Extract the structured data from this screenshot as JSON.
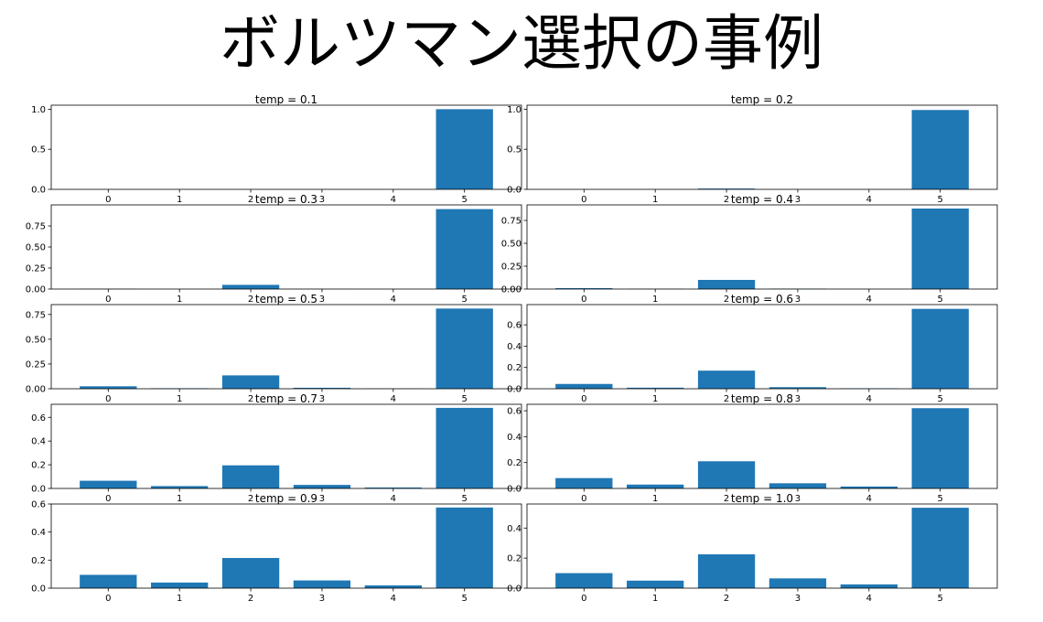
{
  "title": "ボルツマン選択の事例",
  "chart_data": [
    {
      "type": "bar",
      "title": "temp = 0.1",
      "categories": [
        "0",
        "1",
        "2",
        "3",
        "4",
        "5"
      ],
      "values": [
        0.0,
        0.0,
        0.0,
        0.0,
        0.0,
        1.0
      ],
      "ylim": [
        0,
        1.05
      ],
      "yticks": [
        0.0,
        0.5,
        1.0
      ],
      "yfmt": 1,
      "color": "#1f77b4"
    },
    {
      "type": "bar",
      "title": "temp = 0.2",
      "categories": [
        "0",
        "1",
        "2",
        "3",
        "4",
        "5"
      ],
      "values": [
        0.0,
        0.0,
        0.01,
        0.0,
        0.0,
        0.99
      ],
      "ylim": [
        0,
        1.05
      ],
      "yticks": [
        0.0,
        0.5,
        1.0
      ],
      "yfmt": 1,
      "color": "#1f77b4"
    },
    {
      "type": "bar",
      "title": "temp = 0.3",
      "categories": [
        "0",
        "1",
        "2",
        "3",
        "4",
        "5"
      ],
      "values": [
        0.002,
        0.0,
        0.05,
        0.001,
        0.0,
        0.95
      ],
      "ylim": [
        0,
        1.0
      ],
      "yticks": [
        0.0,
        0.25,
        0.5,
        0.75
      ],
      "yfmt": 2,
      "color": "#1f77b4"
    },
    {
      "type": "bar",
      "title": "temp = 0.4",
      "categories": [
        "0",
        "1",
        "2",
        "3",
        "4",
        "5"
      ],
      "values": [
        0.01,
        0.002,
        0.1,
        0.004,
        0.0,
        0.88
      ],
      "ylim": [
        0,
        0.92
      ],
      "yticks": [
        0.0,
        0.25,
        0.5,
        0.75
      ],
      "yfmt": 2,
      "color": "#1f77b4"
    },
    {
      "type": "bar",
      "title": "temp = 0.5",
      "categories": [
        "0",
        "1",
        "2",
        "3",
        "4",
        "5"
      ],
      "values": [
        0.025,
        0.005,
        0.135,
        0.01,
        0.002,
        0.81
      ],
      "ylim": [
        0,
        0.85
      ],
      "yticks": [
        0.0,
        0.25,
        0.5,
        0.75
      ],
      "yfmt": 2,
      "color": "#1f77b4"
    },
    {
      "type": "bar",
      "title": "temp = 0.6",
      "categories": [
        "0",
        "1",
        "2",
        "3",
        "4",
        "5"
      ],
      "values": [
        0.045,
        0.01,
        0.17,
        0.015,
        0.004,
        0.75
      ],
      "ylim": [
        0,
        0.79
      ],
      "yticks": [
        0.0,
        0.2,
        0.4,
        0.6
      ],
      "yfmt": 1,
      "color": "#1f77b4"
    },
    {
      "type": "bar",
      "title": "temp = 0.7",
      "categories": [
        "0",
        "1",
        "2",
        "3",
        "4",
        "5"
      ],
      "values": [
        0.065,
        0.02,
        0.195,
        0.03,
        0.008,
        0.68
      ],
      "ylim": [
        0,
        0.71
      ],
      "yticks": [
        0.0,
        0.2,
        0.4,
        0.6
      ],
      "yfmt": 1,
      "color": "#1f77b4"
    },
    {
      "type": "bar",
      "title": "temp = 0.8",
      "categories": [
        "0",
        "1",
        "2",
        "3",
        "4",
        "5"
      ],
      "values": [
        0.08,
        0.03,
        0.21,
        0.04,
        0.015,
        0.62
      ],
      "ylim": [
        0,
        0.65
      ],
      "yticks": [
        0.0,
        0.2,
        0.4,
        0.6
      ],
      "yfmt": 1,
      "color": "#1f77b4"
    },
    {
      "type": "bar",
      "title": "temp = 0.9",
      "categories": [
        "0",
        "1",
        "2",
        "3",
        "4",
        "5"
      ],
      "values": [
        0.095,
        0.04,
        0.215,
        0.055,
        0.02,
        0.575
      ],
      "ylim": [
        0,
        0.6
      ],
      "yticks": [
        0.0,
        0.2,
        0.4,
        0.6
      ],
      "yfmt": 1,
      "color": "#1f77b4"
    },
    {
      "type": "bar",
      "title": "temp = 1.0",
      "categories": [
        "0",
        "1",
        "2",
        "3",
        "4",
        "5"
      ],
      "values": [
        0.1,
        0.05,
        0.225,
        0.065,
        0.025,
        0.535
      ],
      "ylim": [
        0,
        0.56
      ],
      "yticks": [
        0.0,
        0.2,
        0.4
      ],
      "yfmt": 1,
      "color": "#1f77b4"
    }
  ]
}
